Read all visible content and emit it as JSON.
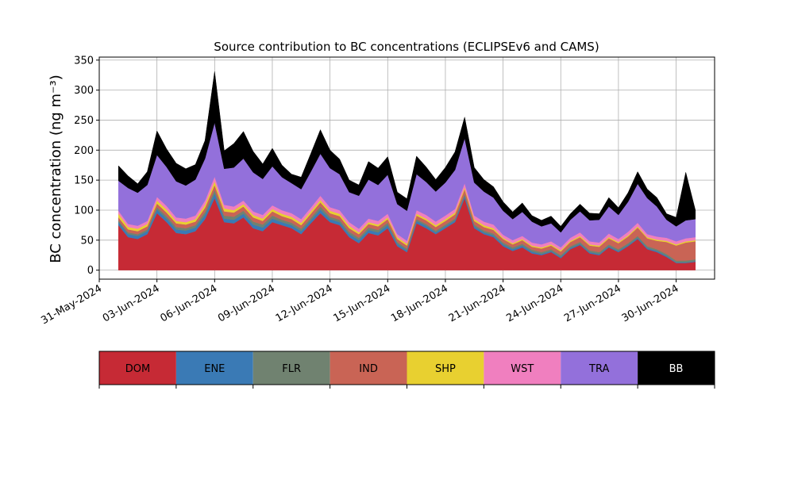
{
  "chart_data": {
    "type": "area",
    "stacked": true,
    "title": "Source contribution to BC concentrations (ECLIPSEv6 and CAMS)",
    "ylabel": "BC concentration (ng m⁻³)",
    "xlabel": "",
    "xlim": [
      "2024-05-31",
      "2024-07-02"
    ],
    "ylim": [
      -15,
      355
    ],
    "yticks": [
      0,
      50,
      100,
      150,
      200,
      250,
      300,
      350
    ],
    "xticks": [
      "31-May-2024",
      "03-Jun-2024",
      "06-Jun-2024",
      "09-Jun-2024",
      "12-Jun-2024",
      "15-Jun-2024",
      "18-Jun-2024",
      "21-Jun-2024",
      "24-Jun-2024",
      "27-Jun-2024",
      "30-Jun-2024"
    ],
    "xtick_dates": [
      "2024-05-31",
      "2024-06-03",
      "2024-06-06",
      "2024-06-09",
      "2024-06-12",
      "2024-06-15",
      "2024-06-18",
      "2024-06-21",
      "2024-06-24",
      "2024-06-27",
      "2024-06-30"
    ],
    "grid": true,
    "legend": "below",
    "x": [
      "2024-06-01",
      "2024-06-01 12:00",
      "2024-06-02",
      "2024-06-02 12:00",
      "2024-06-03",
      "2024-06-03 12:00",
      "2024-06-04",
      "2024-06-04 12:00",
      "2024-06-05",
      "2024-06-05 12:00",
      "2024-06-06",
      "2024-06-06 12:00",
      "2024-06-07",
      "2024-06-07 12:00",
      "2024-06-08",
      "2024-06-08 12:00",
      "2024-06-09",
      "2024-06-09 12:00",
      "2024-06-10",
      "2024-06-10 12:00",
      "2024-06-11",
      "2024-06-11 12:00",
      "2024-06-12",
      "2024-06-12 12:00",
      "2024-06-13",
      "2024-06-13 12:00",
      "2024-06-14",
      "2024-06-14 12:00",
      "2024-06-15",
      "2024-06-15 12:00",
      "2024-06-16",
      "2024-06-16 12:00",
      "2024-06-17",
      "2024-06-17 12:00",
      "2024-06-18",
      "2024-06-18 12:00",
      "2024-06-19",
      "2024-06-19 12:00",
      "2024-06-20",
      "2024-06-20 12:00",
      "2024-06-21",
      "2024-06-21 12:00",
      "2024-06-22",
      "2024-06-22 12:00",
      "2024-06-23",
      "2024-06-23 12:00",
      "2024-06-24",
      "2024-06-24 12:00",
      "2024-06-25",
      "2024-06-25 12:00",
      "2024-06-26",
      "2024-06-26 12:00",
      "2024-06-27",
      "2024-06-27 12:00",
      "2024-06-28",
      "2024-06-28 12:00",
      "2024-06-29",
      "2024-06-29 12:00",
      "2024-06-30",
      "2024-06-30 12:00",
      "2024-07-01"
    ],
    "series": [
      {
        "name": "DOM",
        "color": "#c62a35",
        "values": [
          75,
          55,
          52,
          60,
          95,
          80,
          62,
          60,
          65,
          85,
          120,
          80,
          78,
          88,
          70,
          65,
          80,
          75,
          70,
          60,
          78,
          95,
          80,
          75,
          55,
          45,
          62,
          58,
          70,
          40,
          30,
          78,
          70,
          60,
          70,
          80,
          120,
          70,
          60,
          55,
          40,
          32,
          38,
          28,
          25,
          30,
          20,
          35,
          42,
          28,
          25,
          38,
          30,
          40,
          52,
          35,
          30,
          22,
          12,
          12,
          14
        ]
      },
      {
        "name": "ENE",
        "color": "#3a7ab5",
        "values": [
          5,
          5,
          5,
          5,
          6,
          6,
          6,
          6,
          6,
          7,
          8,
          6,
          6,
          6,
          6,
          6,
          6,
          5,
          5,
          5,
          5,
          6,
          5,
          5,
          5,
          5,
          5,
          5,
          5,
          4,
          3,
          4,
          4,
          3,
          3,
          3,
          4,
          3,
          3,
          3,
          3,
          3,
          3,
          3,
          2,
          2,
          2,
          2,
          2,
          2,
          2,
          2,
          2,
          2,
          2,
          2,
          2,
          2,
          1,
          1,
          1
        ]
      },
      {
        "name": "FLR",
        "color": "#708270",
        "values": [
          3,
          3,
          3,
          3,
          4,
          4,
          4,
          4,
          4,
          5,
          6,
          5,
          5,
          5,
          5,
          5,
          5,
          4,
          4,
          4,
          4,
          5,
          4,
          4,
          4,
          4,
          4,
          4,
          4,
          3,
          3,
          3,
          3,
          3,
          3,
          3,
          3,
          3,
          3,
          3,
          3,
          3,
          3,
          3,
          3,
          3,
          3,
          3,
          3,
          3,
          3,
          3,
          3,
          3,
          3,
          3,
          3,
          3,
          3,
          3,
          3
        ]
      },
      {
        "name": "IND",
        "color": "#c96455",
        "values": [
          5,
          5,
          5,
          5,
          6,
          6,
          6,
          6,
          6,
          7,
          8,
          7,
          7,
          7,
          7,
          6,
          7,
          6,
          6,
          6,
          7,
          7,
          6,
          6,
          6,
          6,
          6,
          6,
          6,
          5,
          5,
          6,
          6,
          6,
          6,
          7,
          8,
          6,
          6,
          6,
          6,
          5,
          6,
          5,
          6,
          6,
          6,
          7,
          8,
          8,
          9,
          10,
          10,
          11,
          14,
          13,
          14,
          20,
          25,
          30,
          30
        ]
      },
      {
        "name": "SHP",
        "color": "#e8d030",
        "values": [
          6,
          4,
          4,
          4,
          5,
          5,
          4,
          4,
          4,
          5,
          6,
          5,
          4,
          4,
          4,
          4,
          4,
          4,
          4,
          4,
          4,
          4,
          4,
          4,
          4,
          3,
          3,
          3,
          3,
          3,
          3,
          3,
          3,
          3,
          3,
          3,
          3,
          3,
          3,
          3,
          2,
          2,
          2,
          2,
          2,
          2,
          2,
          2,
          2,
          2,
          2,
          2,
          2,
          2,
          2,
          2,
          2,
          2,
          2,
          2,
          2
        ]
      },
      {
        "name": "WST",
        "color": "#f07fbf",
        "values": [
          5,
          5,
          5,
          5,
          6,
          6,
          6,
          6,
          6,
          7,
          8,
          6,
          6,
          6,
          6,
          6,
          6,
          6,
          6,
          6,
          6,
          7,
          6,
          6,
          6,
          6,
          6,
          6,
          6,
          5,
          5,
          6,
          6,
          6,
          6,
          6,
          7,
          6,
          6,
          6,
          5,
          5,
          5,
          5,
          5,
          5,
          5,
          5,
          6,
          5,
          5,
          6,
          5,
          6,
          6,
          5,
          5,
          5,
          5,
          5,
          5
        ]
      },
      {
        "name": "TRA",
        "color": "#9370db",
        "values": [
          50,
          60,
          55,
          60,
          70,
          65,
          60,
          55,
          60,
          70,
          90,
          60,
          65,
          70,
          65,
          60,
          65,
          55,
          50,
          50,
          60,
          70,
          65,
          60,
          50,
          55,
          65,
          60,
          65,
          50,
          50,
          60,
          55,
          50,
          55,
          65,
          75,
          55,
          50,
          45,
          40,
          35,
          40,
          35,
          30,
          30,
          25,
          30,
          35,
          35,
          38,
          45,
          40,
          50,
          65,
          60,
          50,
          30,
          25,
          30,
          30
        ]
      },
      {
        "name": "BB",
        "color": "#000000",
        "values": [
          25,
          20,
          15,
          22,
          40,
          30,
          30,
          28,
          25,
          30,
          85,
          30,
          40,
          45,
          35,
          25,
          30,
          20,
          15,
          20,
          30,
          40,
          30,
          25,
          20,
          18,
          30,
          28,
          30,
          20,
          20,
          30,
          25,
          20,
          25,
          30,
          35,
          25,
          20,
          18,
          15,
          12,
          15,
          10,
          10,
          12,
          10,
          10,
          12,
          12,
          10,
          15,
          12,
          15,
          20,
          15,
          15,
          10,
          15,
          80,
          15
        ]
      }
    ]
  }
}
